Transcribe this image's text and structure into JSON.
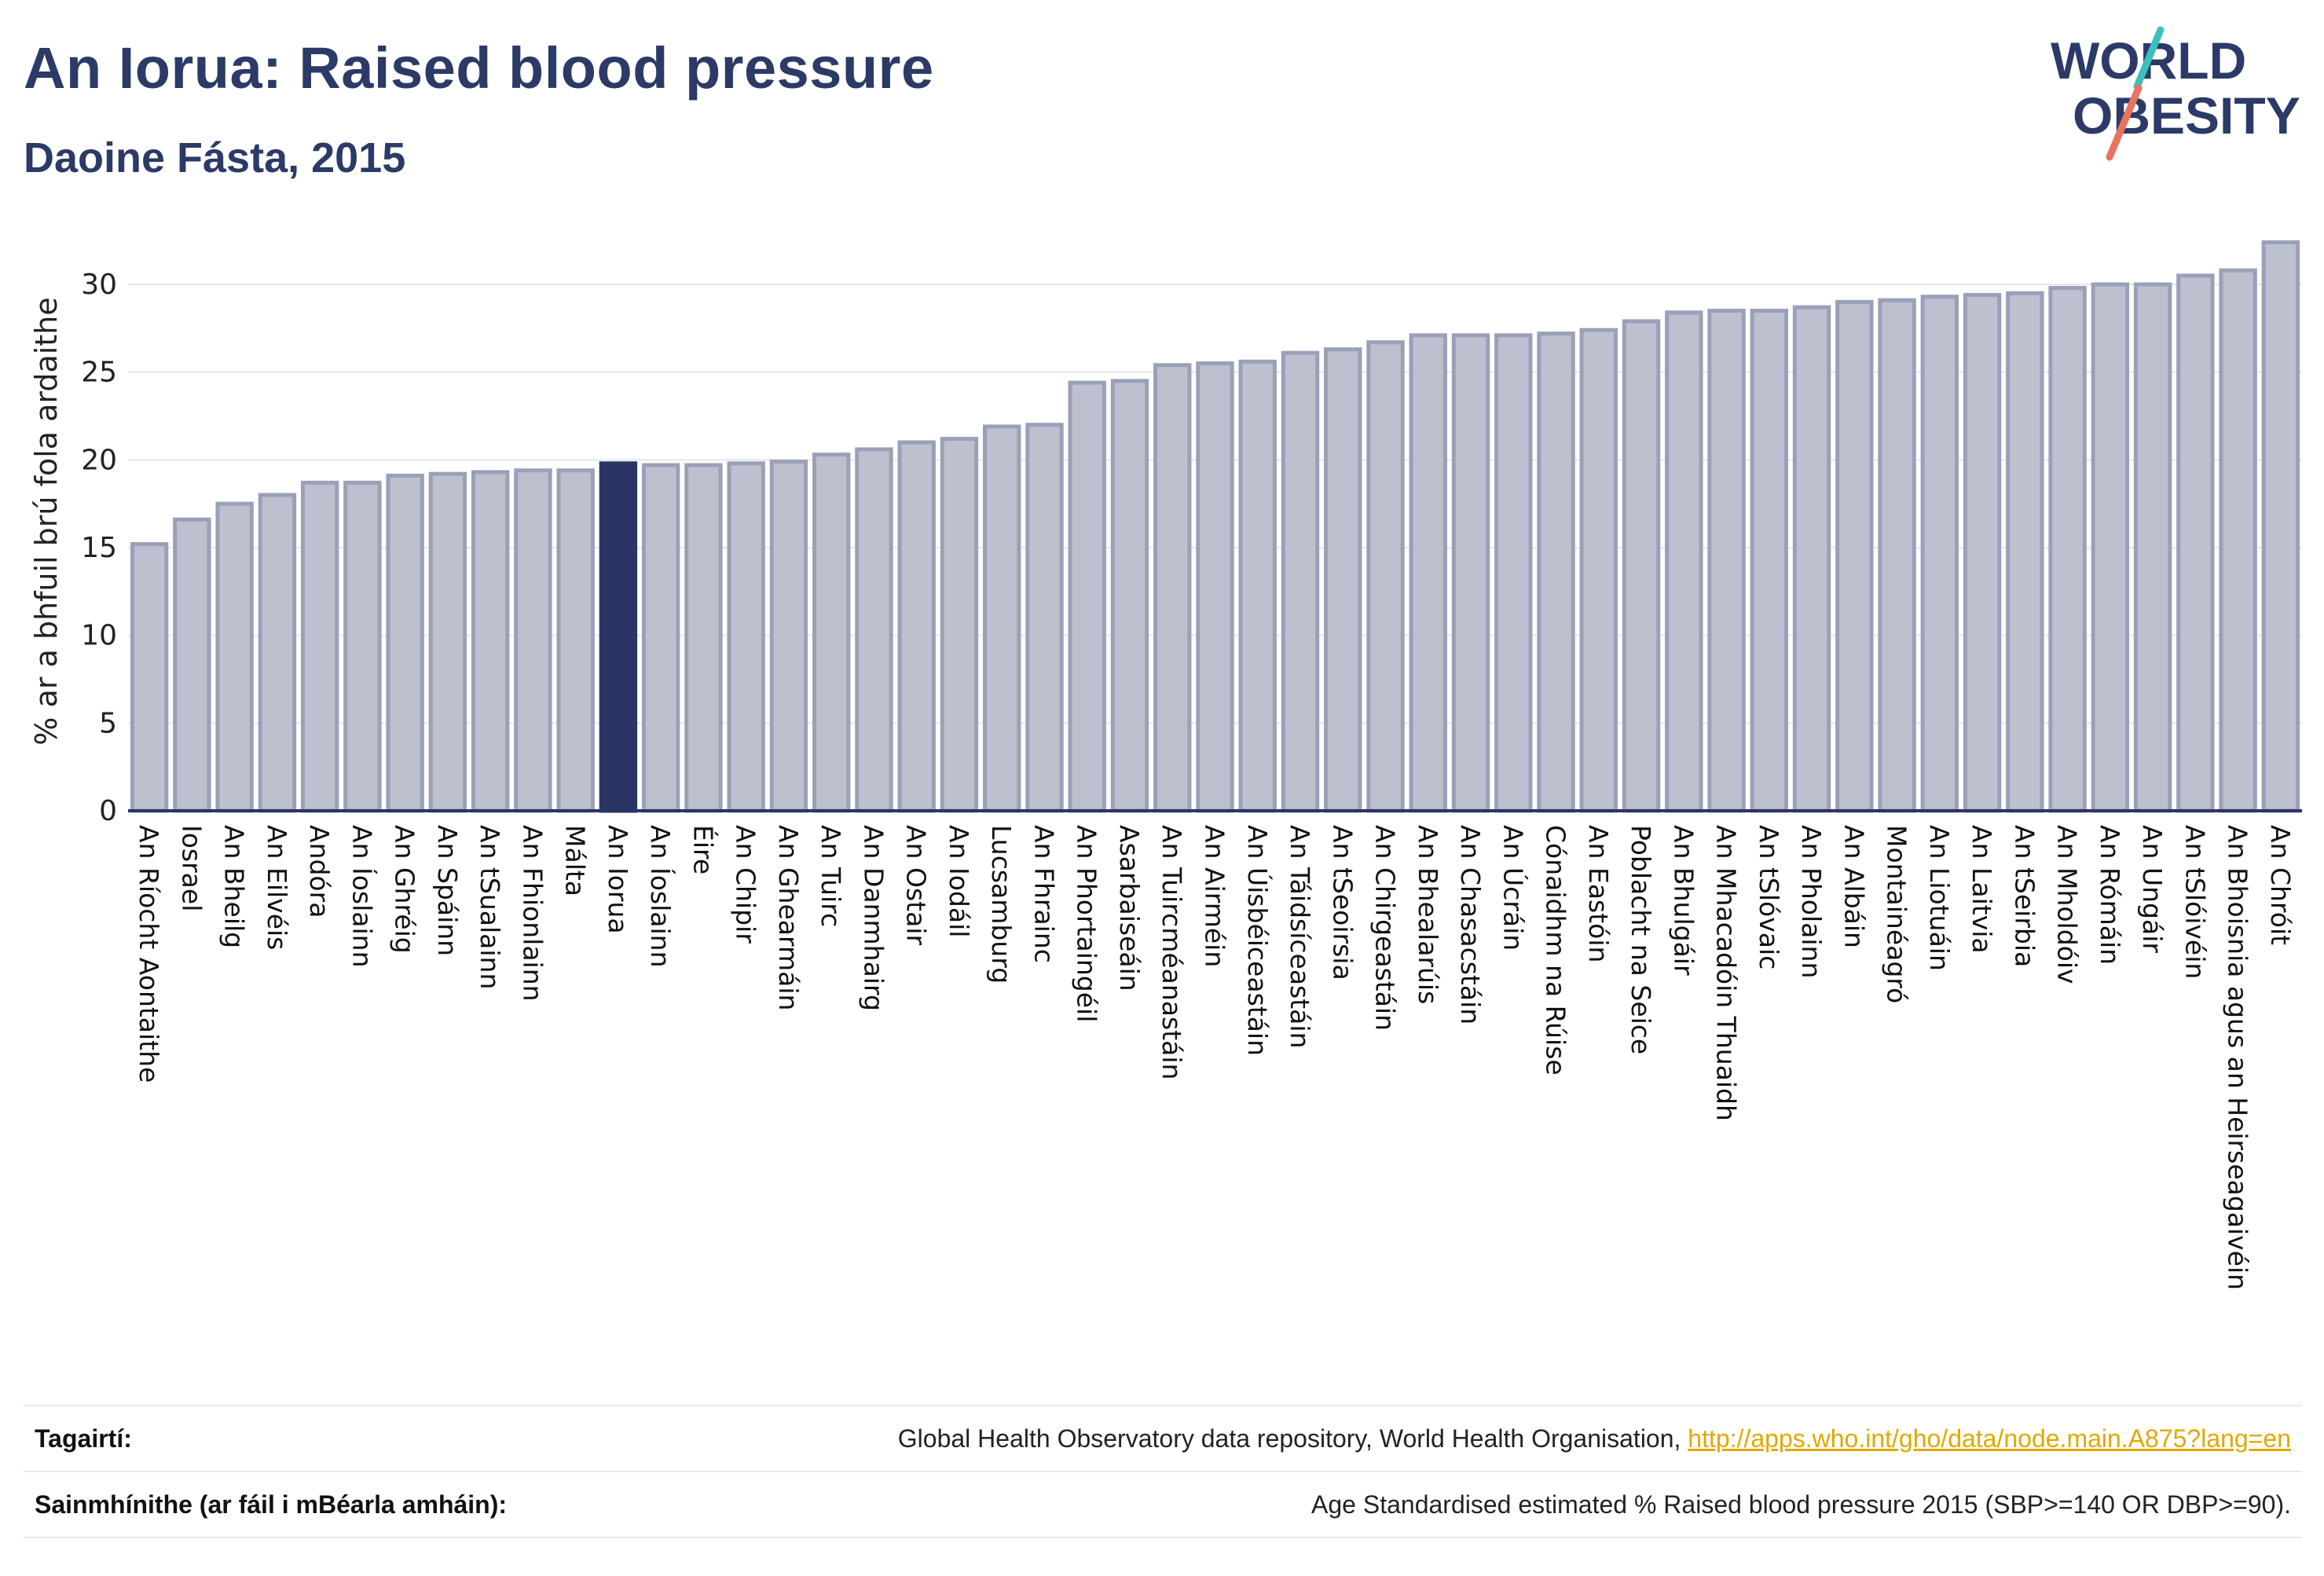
{
  "header": {
    "title": "An Iorua: Raised blood pressure",
    "subtitle": "Daoine Fásta, 2015"
  },
  "logo": {
    "line1": "WORLD",
    "line2": "OBESITY"
  },
  "colors": {
    "bar": "#bcc0cf",
    "bar_stroke": "#9aa0b8",
    "highlight": "#2a3563",
    "grid": "#e3e5ea",
    "axis": "#2a3563",
    "link": "#e0a800"
  },
  "chart_data": {
    "type": "bar",
    "title": "An Iorua: Raised blood pressure",
    "subtitle": "Daoine Fásta, 2015",
    "xlabel": "",
    "ylabel": "% ar a bhfuil brú fola ardaithe",
    "ylim": [
      0,
      33
    ],
    "yticks": [
      0,
      5,
      10,
      15,
      20,
      25,
      30
    ],
    "grid": true,
    "highlight": "An Iorua",
    "categories": [
      "An Ríocht Aontaithe",
      "Iosrael",
      "An Bheilg",
      "An Eilvéis",
      "Andóra",
      "An Íoslainn",
      "An Ghréig",
      "An Spáinn",
      "An tSualainn",
      "An Fhionlainn",
      "Málta",
      "An Iorua",
      "An Íoslainn",
      "Éire",
      "An Chipir",
      "An Ghearmáin",
      "An Tuirc",
      "An Danmhairg",
      "An Ostair",
      "An Iodáil",
      "Lucsamburg",
      "An Fhrainc",
      "An Phortaingéil",
      "Asarbaiseáin",
      "An Tuircméanastáin",
      "An Airméin",
      "An Úisbéiceastáin",
      "An Táidsíceastáin",
      "An tSeoirsia",
      "An Chirgeastáin",
      "An Bhealarúis",
      "An Chasacstáin",
      "An Úcráin",
      "Cónaidhm na Rúise",
      "An Eastóin",
      "Poblacht na Seice",
      "An Bhulgáir",
      "An Mhacadóin Thuaidh",
      "An tSlóvaic",
      "An Pholainn",
      "An Albáin",
      "Montainéagró",
      "An Liotuáin",
      "An Laitvia",
      "An tSeirbia",
      "An Mholdóiv",
      "An Rómáin",
      "An Ungáir",
      "An tSlóivéin",
      "An Bhoisnia agus an Heirseagaivéin",
      "An Chróit"
    ],
    "values": [
      15.2,
      16.6,
      17.5,
      18.0,
      18.7,
      18.7,
      19.1,
      19.2,
      19.3,
      19.4,
      19.4,
      19.8,
      19.7,
      19.7,
      19.8,
      19.9,
      20.3,
      20.6,
      21.0,
      21.2,
      21.9,
      22.0,
      24.4,
      24.5,
      25.4,
      25.5,
      25.6,
      26.1,
      26.3,
      26.7,
      27.1,
      27.1,
      27.1,
      27.2,
      27.4,
      27.9,
      28.4,
      28.5,
      28.5,
      28.7,
      29.0,
      29.1,
      29.3,
      29.4,
      29.5,
      29.8,
      30.0,
      30.0,
      30.5,
      30.8,
      32.4
    ]
  },
  "references": {
    "sources_label": "Tagairtí:",
    "sources_text": "Global Health Observatory data repository, World Health Organisation, ",
    "sources_link": "http://apps.who.int/gho/data/node.main.A875?lang=en",
    "definitions_label": "Sainmhínithe (ar fáil i mBéarla amháin):",
    "definitions_text": "Age Standardised estimated % Raised blood pressure 2015 (SBP>=140 OR DBP>=90)."
  }
}
